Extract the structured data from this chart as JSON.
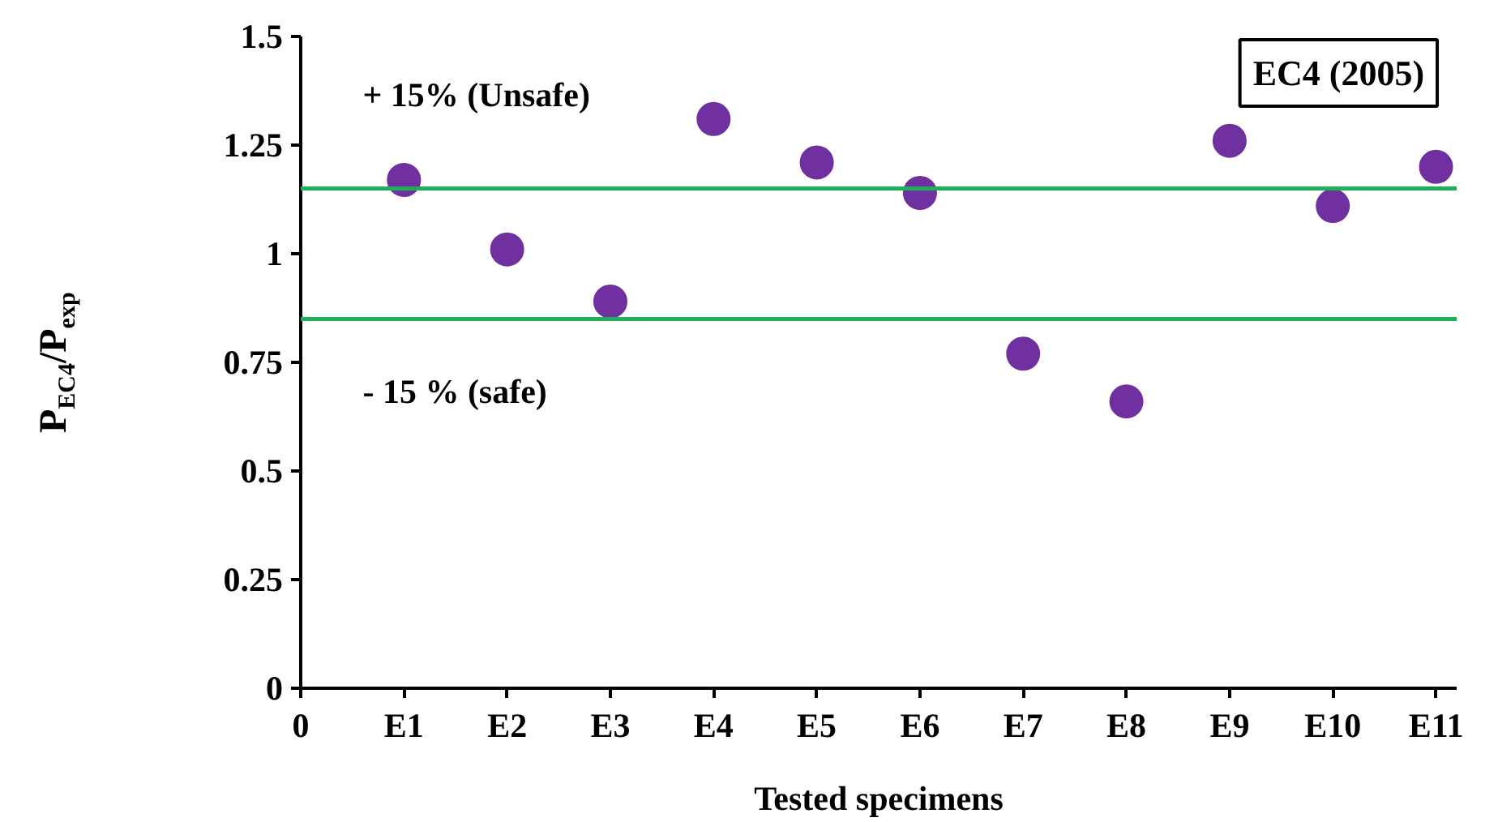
{
  "chart_data": {
    "type": "scatter",
    "xlabel": "Tested specimens",
    "ylabel": "P$_{EC4}$/P$_{exp}$",
    "categories": [
      "0",
      "E1",
      "E2",
      "E3",
      "E4",
      "E5",
      "E6",
      "E7",
      "E8",
      "E9",
      "E10",
      "E11"
    ],
    "values": [
      null,
      1.17,
      1.01,
      0.89,
      1.31,
      1.21,
      1.14,
      0.77,
      0.66,
      1.26,
      1.11,
      1.2
    ],
    "color": "#7030a0",
    "marker": "circle",
    "ylim": [
      0,
      1.5
    ],
    "yticks": [
      0,
      0.25,
      0.5,
      0.75,
      1,
      1.25,
      1.5
    ],
    "grid": false,
    "legend": false,
    "ref_lines": [
      {
        "axis": "y",
        "value": 1.15,
        "label": "+ 15% (Unsafe)",
        "color": "#1fae5a"
      },
      {
        "axis": "y",
        "value": 0.85,
        "label": "- 15 % (safe)",
        "color": "#1fae5a"
      }
    ],
    "annotations": [
      "EC4 (2005)"
    ]
  }
}
